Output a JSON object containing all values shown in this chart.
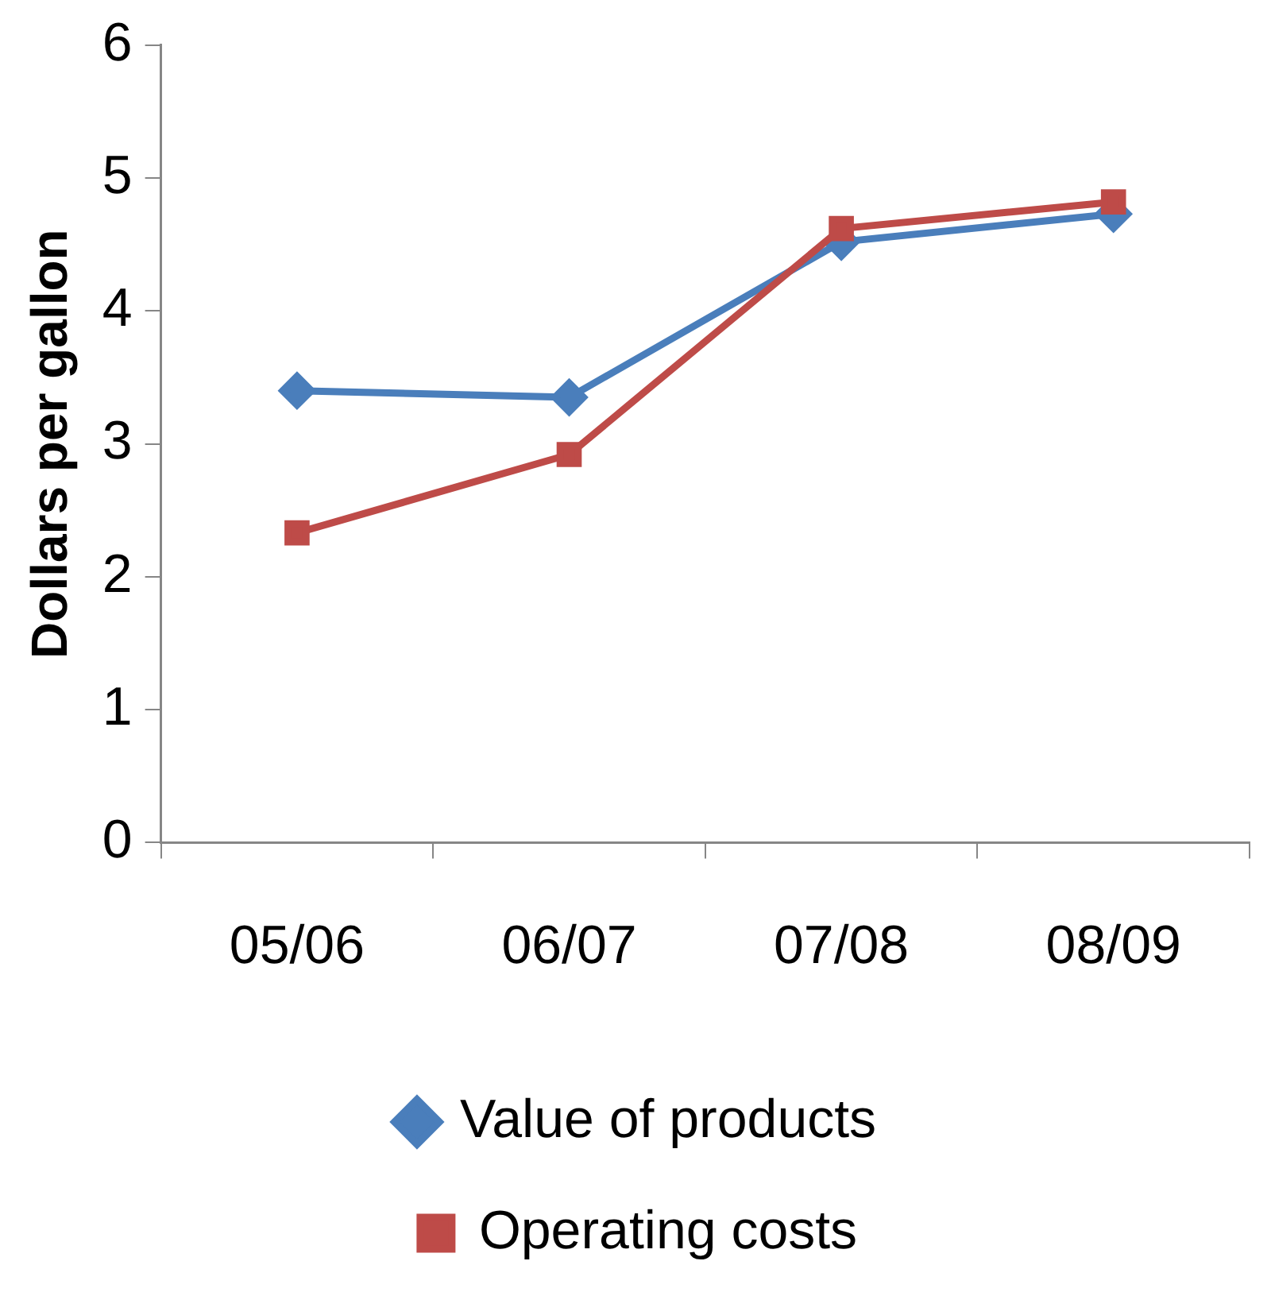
{
  "chart_data": {
    "type": "line",
    "ylabel": "Dollars per gallon",
    "categories": [
      "05/06",
      "06/07",
      "07/08",
      "08/09"
    ],
    "series": [
      {
        "name": "Value of products",
        "color": "#4a7ebb",
        "marker": "diamond",
        "values": [
          3.4,
          3.35,
          4.52,
          4.73
        ]
      },
      {
        "name": "Operating costs",
        "color": "#be4b48",
        "marker": "square",
        "values": [
          2.33,
          2.92,
          4.62,
          4.82
        ]
      }
    ],
    "ylim": [
      0,
      6
    ],
    "yticks": [
      0,
      1,
      2,
      3,
      4,
      5,
      6
    ],
    "grid": false,
    "legend": "bottom"
  }
}
